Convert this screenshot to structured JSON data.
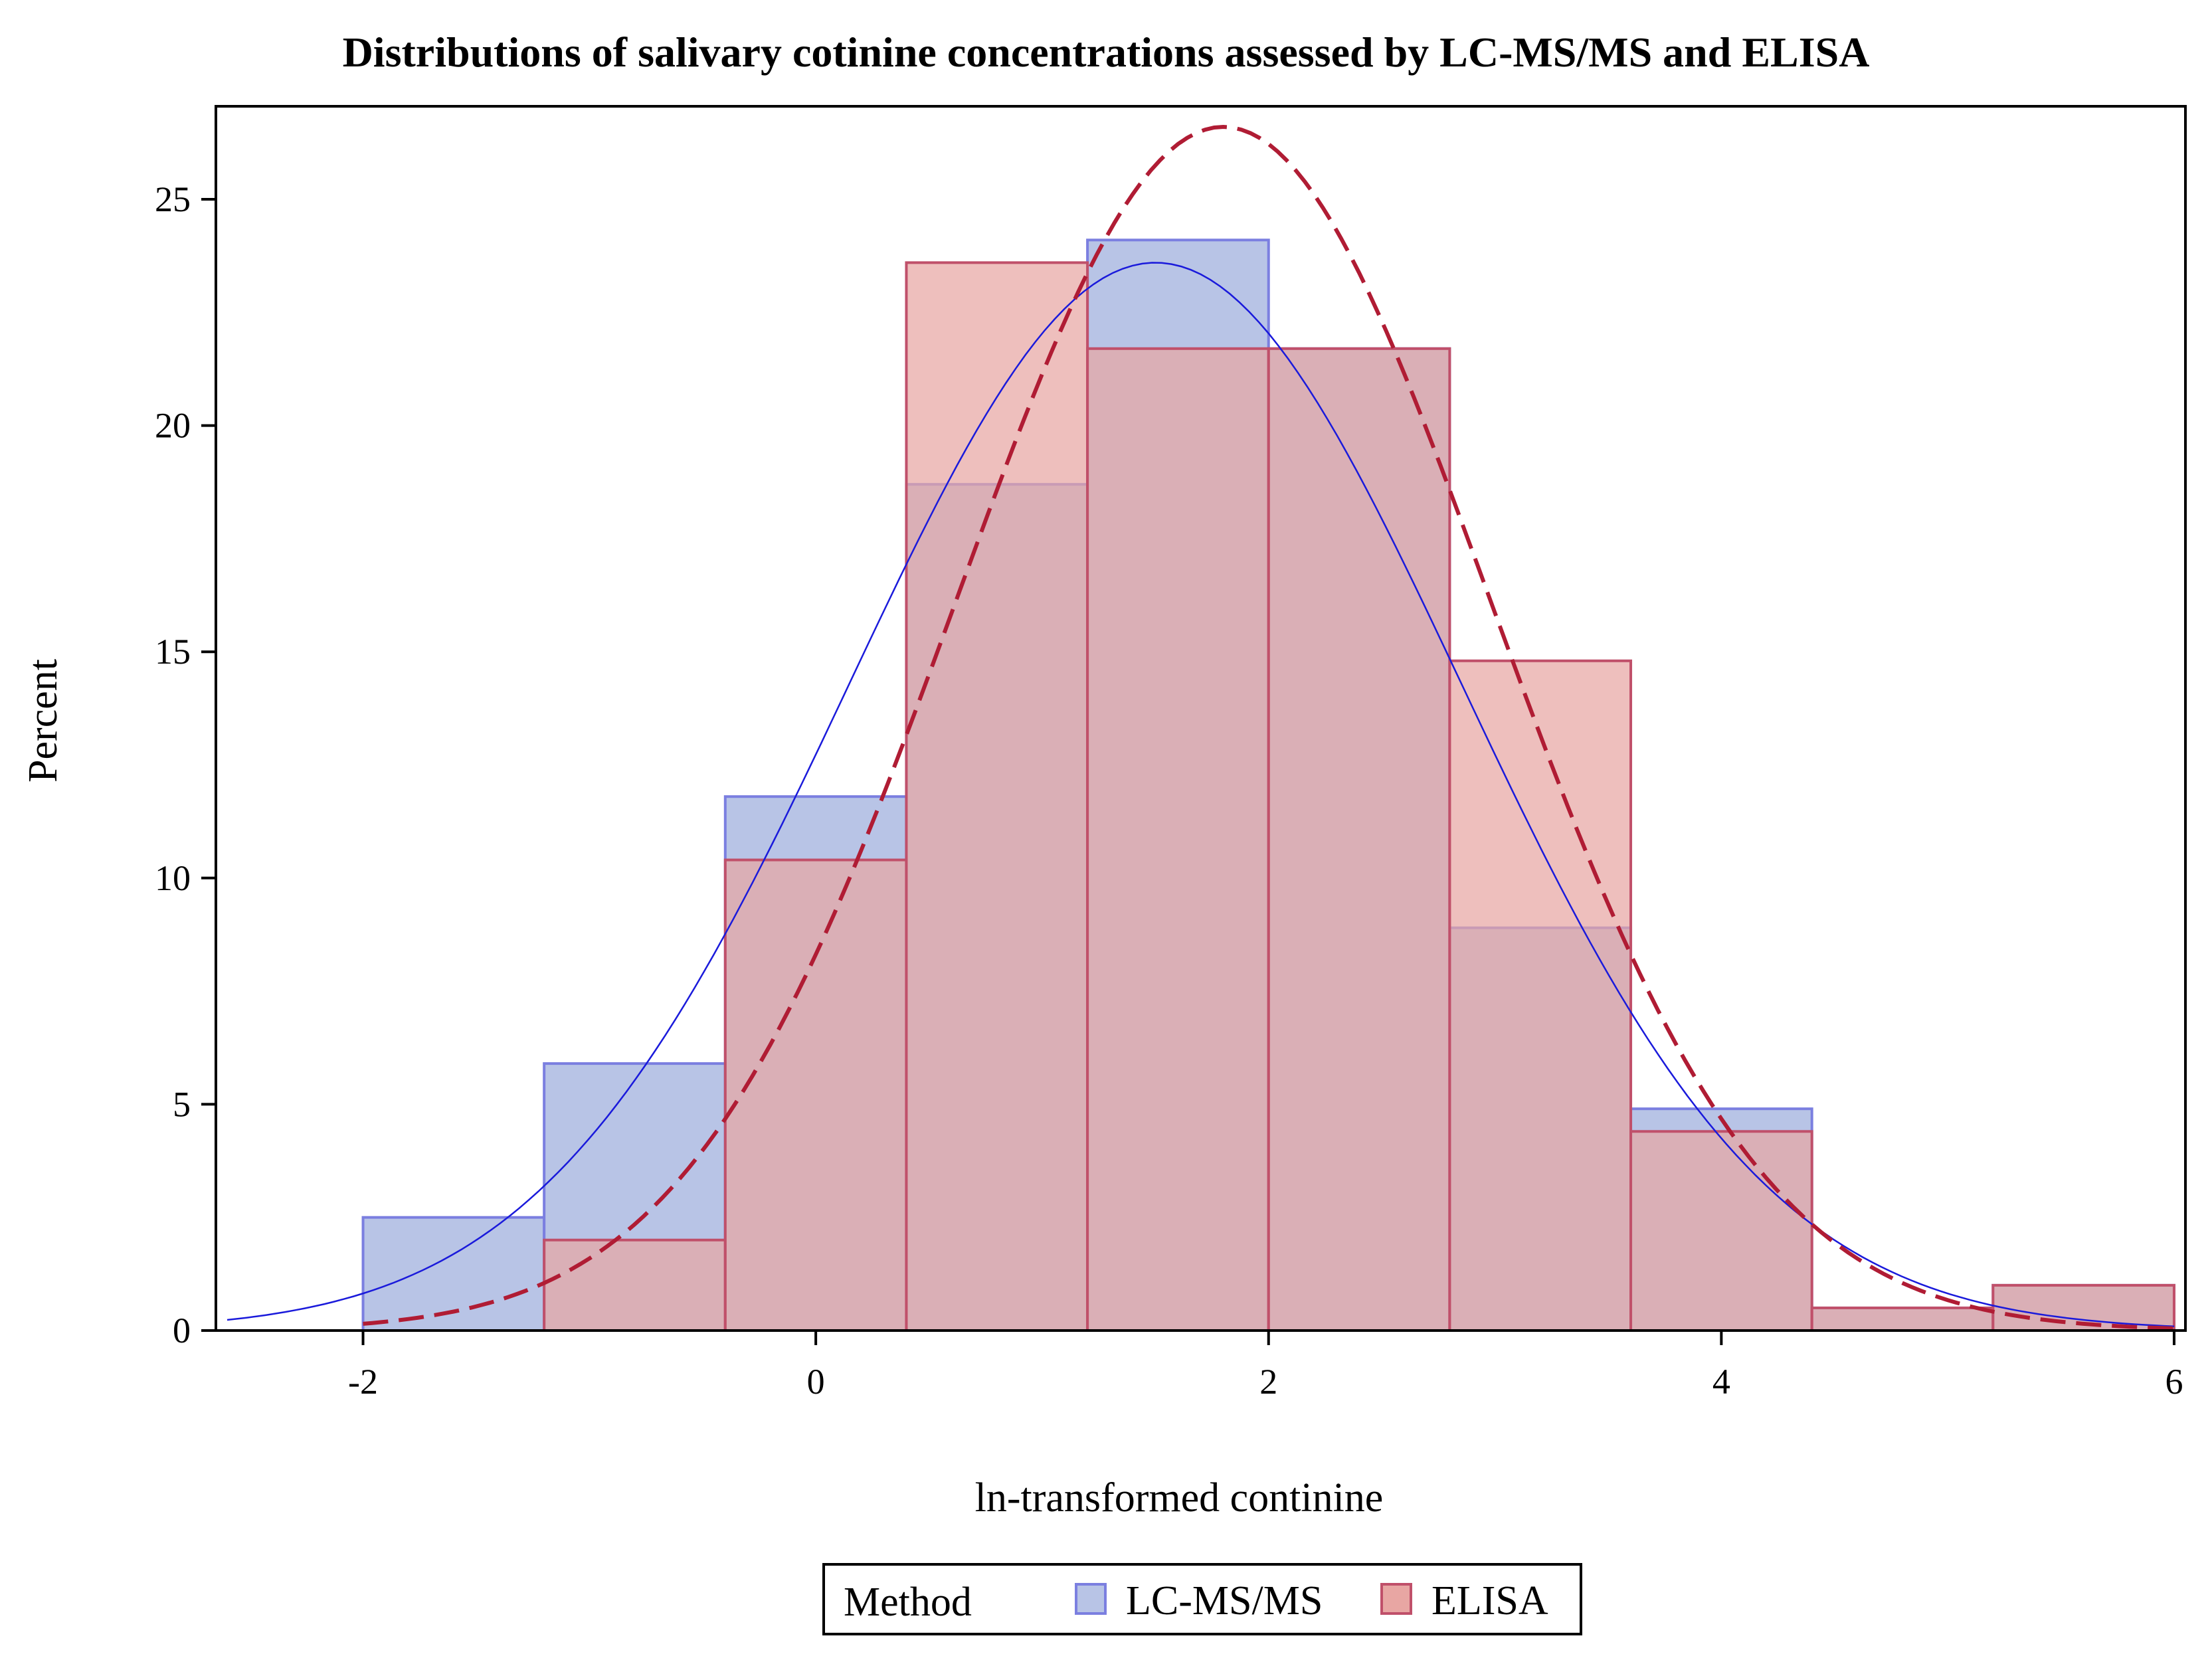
{
  "chart_data": {
    "type": "histogram",
    "title": "Distributions of salivary cotinine concentrations assessed by LC-MS/MS and ELISA",
    "xlabel": "ln-transformed continine",
    "ylabel": "Percent",
    "xlim": [
      -2.65,
      6.05
    ],
    "ylim": [
      0,
      27
    ],
    "x_ticks": [
      -2,
      0,
      2,
      4,
      6
    ],
    "y_ticks": [
      0,
      5,
      10,
      15,
      20,
      25
    ],
    "bin_edges": [
      -2.0,
      -1.2,
      -0.4,
      0.4,
      1.2,
      2.0,
      2.8,
      3.6,
      4.4,
      5.2,
      6.0
    ],
    "series": [
      {
        "name": "LC-MS/MS",
        "fill": "#b8c4e6",
        "stroke": "#7b7fe0",
        "values": [
          2.5,
          5.9,
          11.8,
          18.7,
          24.1,
          21.7,
          8.9,
          4.9,
          0.5,
          1.0
        ],
        "normal_curve": {
          "mean": 1.5,
          "sd": 1.35,
          "peak": 23.6,
          "style": "solid",
          "color": "#1a1adb"
        }
      },
      {
        "name": "ELISA",
        "fill": "#e8a6a3",
        "stroke": "#c0506a",
        "values": [
          0.0,
          2.0,
          10.4,
          23.6,
          21.7,
          21.7,
          14.8,
          4.4,
          0.5,
          1.0
        ],
        "normal_curve": {
          "mean": 1.8,
          "sd": 1.18,
          "peak": 26.6,
          "style": "dashed",
          "color": "#b01c34"
        }
      }
    ],
    "overlap_color": "#cfa3aa",
    "grid": false,
    "legend": {
      "title": "Method",
      "position": "bottom-center"
    }
  }
}
